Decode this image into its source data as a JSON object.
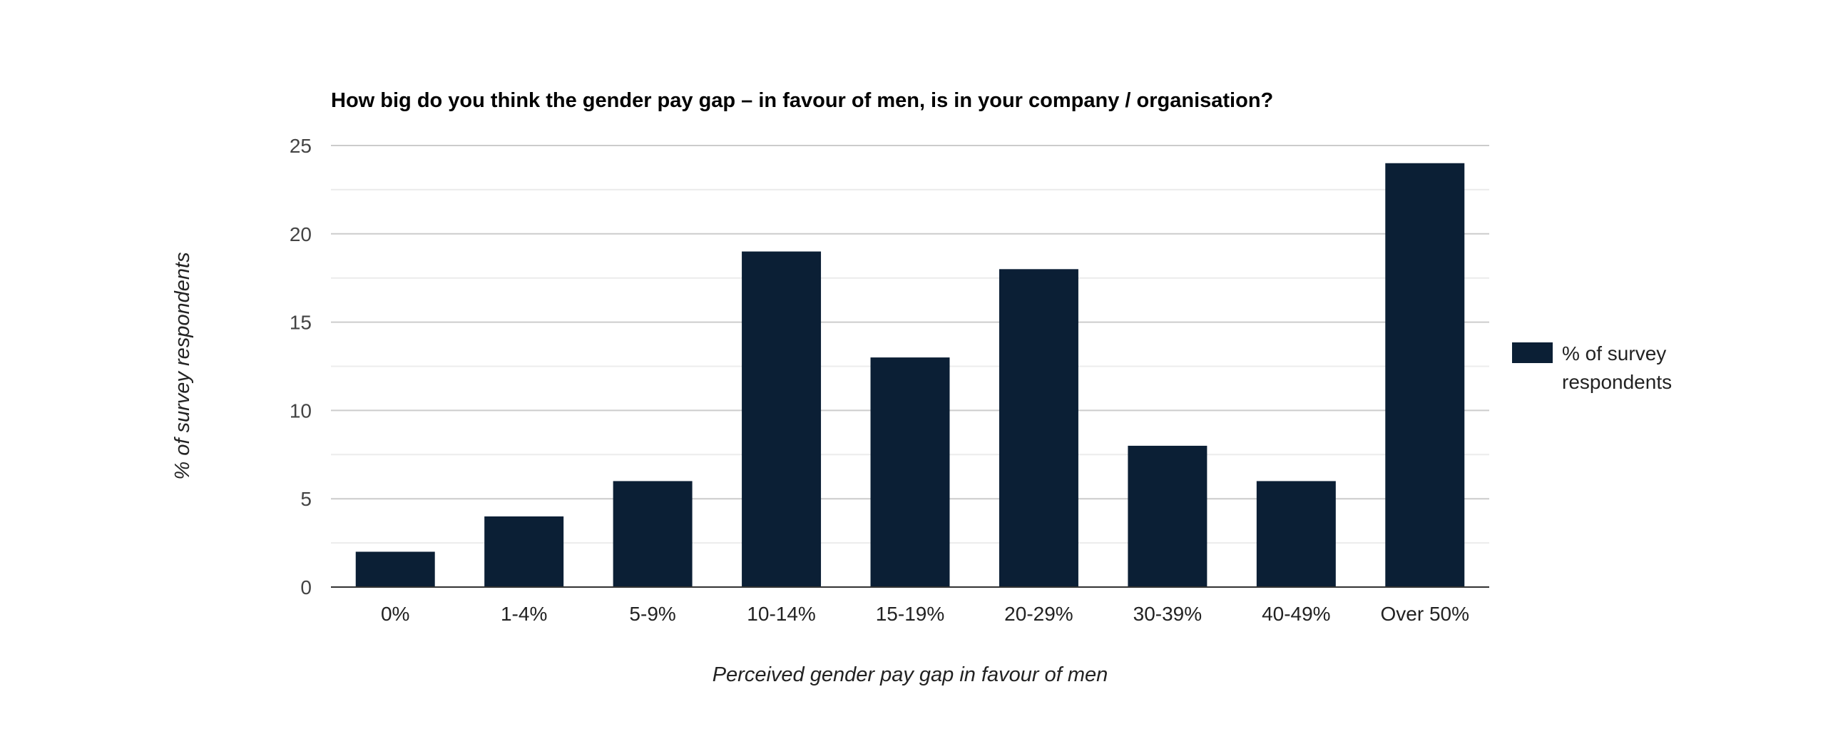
{
  "chart_data": {
    "type": "bar",
    "title": "How big do you think the gender pay gap – in favour of men, is in your company / organisation?",
    "xlabel": "Perceived gender pay gap in favour of men",
    "ylabel": "% of survey respondents",
    "categories": [
      "0%",
      "1-4%",
      "5-9%",
      "10-14%",
      "15-19%",
      "20-29%",
      "30-39%",
      "40-49%",
      "Over 50%"
    ],
    "series": [
      {
        "name": "% of survey respondents",
        "legend_lines": [
          "% of survey",
          "respondents"
        ],
        "values": [
          2,
          4,
          6,
          19,
          13,
          18,
          8,
          6,
          24
        ],
        "color": "#0b1f35"
      }
    ],
    "ylim": [
      0,
      25
    ],
    "yticks": [
      0,
      5,
      10,
      15,
      20,
      25
    ],
    "minor_grid_step": 2.5,
    "grid": true,
    "legend_position": "right"
  }
}
